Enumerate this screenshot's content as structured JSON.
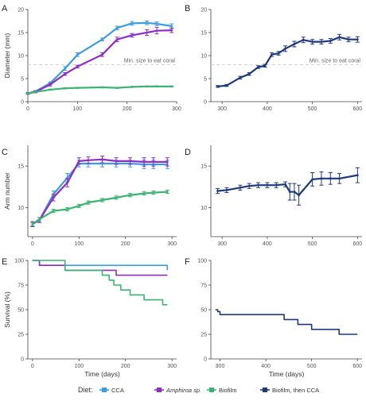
{
  "legend": {
    "title": "Diet:",
    "items": [
      {
        "label": "CCA",
        "color": "#3b9de0"
      },
      {
        "label": "Amphiroa sp.",
        "color": "#8e2fc4"
      },
      {
        "label": "Biofilm",
        "color": "#3cb371"
      },
      {
        "label": "Biofilm, then CCA",
        "color": "#1f3a7a"
      }
    ]
  },
  "chart_data": [
    {
      "panel": "A",
      "type": "line",
      "ylabel": "Diameter (mm)",
      "xlabel": "",
      "xlim": [
        0,
        300
      ],
      "ylim": [
        0,
        20
      ],
      "xticks": [
        "0",
        "100",
        "200",
        "300"
      ],
      "xtick_values": [
        0,
        100,
        200,
        300
      ],
      "yticks": [
        "0",
        "5",
        "10",
        "15",
        "20"
      ],
      "ytick_values": [
        0,
        5,
        10,
        15,
        20
      ],
      "reference_line": {
        "y": 8,
        "label": "Min. size to eat coral"
      },
      "series": [
        {
          "name": "CCA",
          "color": "#3b9de0",
          "x": [
            0,
            15,
            45,
            75,
            100,
            150,
            180,
            210,
            240,
            260,
            290
          ],
          "y": [
            1.8,
            2.2,
            4.0,
            7.2,
            10.2,
            13.5,
            16.0,
            17.0,
            17.1,
            16.9,
            16.4
          ],
          "err": [
            0.2,
            0.2,
            0.3,
            0.4,
            0.4,
            0.3,
            0.4,
            0.4,
            0.4,
            0.4,
            0.5
          ]
        },
        {
          "name": "Amphiroa sp.",
          "color": "#8e2fc4",
          "x": [
            0,
            15,
            45,
            75,
            100,
            150,
            180,
            210,
            240,
            260,
            290
          ],
          "y": [
            1.8,
            2.1,
            3.7,
            6.0,
            7.6,
            10.2,
            13.5,
            14.4,
            15.0,
            15.4,
            15.5
          ],
          "err": [
            0.2,
            0.2,
            0.3,
            0.3,
            0.3,
            0.4,
            0.5,
            0.4,
            0.6,
            0.7,
            0.5
          ]
        },
        {
          "name": "Biofilm",
          "color": "#3cb371",
          "x": [
            0,
            15,
            45,
            75,
            100,
            150,
            180,
            210,
            240,
            260,
            290
          ],
          "y": [
            1.8,
            2.1,
            2.6,
            2.9,
            3.0,
            3.1,
            3.0,
            3.2,
            3.3,
            3.3,
            3.3
          ],
          "err": [
            0.1,
            0.1,
            0.1,
            0.1,
            0.1,
            0.1,
            0.1,
            0.1,
            0.1,
            0.1,
            0.1
          ]
        }
      ]
    },
    {
      "panel": "B",
      "type": "line",
      "ylabel": "",
      "xlabel": "",
      "xlim": [
        275,
        610
      ],
      "ylim": [
        0,
        20
      ],
      "xticks": [
        "300",
        "400",
        "500",
        "600"
      ],
      "xtick_values": [
        300,
        400,
        500,
        600
      ],
      "yticks": [
        "0",
        "5",
        "10",
        "15",
        "20"
      ],
      "ytick_values": [
        0,
        5,
        10,
        15,
        20
      ],
      "reference_line": {
        "y": 8,
        "label": "Min. size to eat coral"
      },
      "series": [
        {
          "name": "Biofilm, then CCA",
          "color": "#1f3a7a",
          "x": [
            290,
            310,
            340,
            360,
            380,
            395,
            410,
            425,
            440,
            460,
            480,
            500,
            520,
            540,
            560,
            580,
            600
          ],
          "y": [
            3.3,
            3.5,
            5.2,
            6.0,
            7.5,
            7.8,
            10.2,
            10.5,
            11.5,
            12.5,
            13.4,
            13.0,
            13.0,
            13.2,
            14.0,
            13.5,
            13.5
          ],
          "err": [
            0.2,
            0.2,
            0.3,
            0.3,
            0.3,
            0.3,
            0.4,
            0.4,
            0.6,
            0.6,
            0.6,
            0.5,
            0.5,
            0.5,
            0.6,
            0.5,
            0.6
          ]
        }
      ]
    },
    {
      "panel": "C",
      "type": "line",
      "ylabel": "Arm number",
      "xlabel": "",
      "xlim": [
        -10,
        310
      ],
      "ylim": [
        6.5,
        17.5
      ],
      "xticks": [
        "0",
        "100",
        "200",
        "300"
      ],
      "xtick_values": [
        0,
        100,
        200,
        300
      ],
      "yticks": [
        "10",
        "15"
      ],
      "ytick_values": [
        10,
        15
      ],
      "series": [
        {
          "name": "CCA",
          "color": "#3b9de0",
          "x": [
            0,
            15,
            45,
            75,
            100,
            120,
            150,
            180,
            210,
            240,
            260,
            290
          ],
          "y": [
            8.0,
            8.5,
            11.6,
            13.6,
            15.3,
            15.3,
            15.3,
            15.3,
            15.3,
            15.2,
            15.2,
            15.2
          ],
          "err": [
            0.3,
            0.3,
            0.4,
            0.5,
            0.4,
            0.4,
            0.4,
            0.4,
            0.4,
            0.5,
            0.5,
            0.5
          ]
        },
        {
          "name": "Amphiroa sp.",
          "color": "#8e2fc4",
          "x": [
            0,
            15,
            45,
            75,
            100,
            120,
            150,
            180,
            210,
            240,
            260,
            290
          ],
          "y": [
            8.0,
            8.5,
            11.2,
            13.0,
            15.6,
            15.7,
            15.8,
            15.6,
            15.6,
            15.5,
            15.5,
            15.5
          ],
          "err": [
            0.3,
            0.3,
            0.4,
            0.5,
            0.4,
            0.4,
            0.4,
            0.4,
            0.4,
            0.5,
            0.5,
            0.5
          ]
        },
        {
          "name": "Biofilm",
          "color": "#3cb371",
          "x": [
            0,
            15,
            45,
            75,
            100,
            120,
            150,
            180,
            210,
            240,
            260,
            290
          ],
          "y": [
            8.0,
            8.6,
            9.6,
            9.8,
            10.2,
            10.6,
            10.9,
            11.2,
            11.5,
            11.7,
            11.8,
            11.9
          ],
          "err": [
            0.2,
            0.2,
            0.2,
            0.2,
            0.2,
            0.2,
            0.2,
            0.2,
            0.2,
            0.2,
            0.2,
            0.2
          ]
        }
      ]
    },
    {
      "panel": "D",
      "type": "line",
      "ylabel": "",
      "xlabel": "",
      "xlim": [
        275,
        610
      ],
      "ylim": [
        6.5,
        17.5
      ],
      "xticks": [
        "300",
        "400",
        "500",
        "600"
      ],
      "xtick_values": [
        300,
        400,
        500,
        600
      ],
      "yticks": [
        "10",
        "15"
      ],
      "ytick_values": [
        10,
        15
      ],
      "series": [
        {
          "name": "Biofilm, then CCA",
          "color": "#1f3a7a",
          "x": [
            290,
            310,
            340,
            360,
            380,
            400,
            420,
            440,
            450,
            460,
            470,
            500,
            520,
            540,
            560,
            600
          ],
          "y": [
            12.0,
            12.1,
            12.4,
            12.6,
            12.7,
            12.7,
            12.7,
            12.8,
            11.9,
            11.9,
            11.5,
            13.4,
            13.5,
            13.5,
            13.5,
            13.9
          ],
          "err": [
            0.3,
            0.3,
            0.3,
            0.3,
            0.3,
            0.3,
            0.3,
            0.3,
            1.0,
            1.0,
            1.2,
            0.8,
            0.8,
            0.7,
            0.6,
            0.9
          ]
        }
      ]
    },
    {
      "panel": "E",
      "type": "line",
      "step": true,
      "ylabel": "Survival (%)",
      "xlabel": "Time (days)",
      "xlim": [
        -10,
        310
      ],
      "ylim": [
        0,
        100
      ],
      "xticks": [
        "0",
        "100",
        "200",
        "300"
      ],
      "xtick_values": [
        0,
        100,
        200,
        300
      ],
      "yticks": [
        "0",
        "25",
        "50",
        "75",
        "100"
      ],
      "ytick_values": [
        0,
        25,
        50,
        75,
        100
      ],
      "series": [
        {
          "name": "CCA",
          "color": "#3b9de0",
          "x": [
            0,
            15,
            290
          ],
          "y": [
            100,
            95,
            90
          ]
        },
        {
          "name": "Amphiroa sp.",
          "color": "#8e2fc4",
          "x": [
            0,
            15,
            70,
            180,
            290
          ],
          "y": [
            100,
            95,
            90,
            85,
            85
          ]
        },
        {
          "name": "Biofilm",
          "color": "#3cb371",
          "x": [
            0,
            70,
            100,
            150,
            165,
            175,
            190,
            210,
            240,
            280,
            290
          ],
          "y": [
            100,
            90,
            90,
            85,
            80,
            75,
            70,
            65,
            60,
            55,
            55
          ]
        }
      ]
    },
    {
      "panel": "F",
      "type": "line",
      "step": true,
      "ylabel": "",
      "xlabel": "Time (days)",
      "xlim": [
        280,
        610
      ],
      "ylim": [
        0,
        100
      ],
      "xticks": [
        "300",
        "400",
        "500",
        "600"
      ],
      "xtick_values": [
        300,
        400,
        500,
        600
      ],
      "yticks": [
        "0",
        "25",
        "50",
        "75",
        "100"
      ],
      "ytick_values": [
        0,
        25,
        50,
        75,
        100
      ],
      "series": [
        {
          "name": "Biofilm, then CCA",
          "color": "#1f3a7a",
          "x": [
            290,
            295,
            300,
            440,
            470,
            500,
            560,
            600
          ],
          "y": [
            50,
            48,
            45,
            40,
            35,
            30,
            25,
            25
          ]
        }
      ]
    }
  ]
}
